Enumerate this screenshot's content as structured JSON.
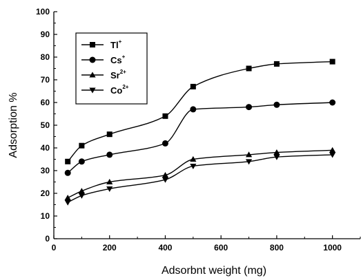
{
  "chart_data": {
    "type": "scatter",
    "title": "",
    "xlabel": "Adsorbnt weight (mg)",
    "ylabel": "Adsorption %",
    "xlim": [
      0,
      1100
    ],
    "ylim": [
      0,
      100
    ],
    "xticks": [
      0,
      200,
      400,
      600,
      800,
      1000
    ],
    "yticks": [
      0,
      10,
      20,
      30,
      40,
      50,
      60,
      70,
      80,
      90,
      100
    ],
    "grid": false,
    "legend_position": "top-left",
    "marker_color": "#000000",
    "x": [
      50,
      100,
      200,
      400,
      500,
      700,
      800,
      1000
    ],
    "series": [
      {
        "name": "Tl",
        "sup": "+",
        "marker": "square",
        "values": [
          34,
          41,
          46,
          54,
          67,
          75,
          77,
          78
        ]
      },
      {
        "name": "Cs",
        "sup": "+",
        "marker": "circle",
        "values": [
          29,
          34,
          37,
          42,
          57,
          58,
          59,
          60
        ]
      },
      {
        "name": "Sr",
        "sup": "2+",
        "marker": "triangle-up",
        "values": [
          18,
          21,
          25,
          28,
          35,
          37,
          38,
          39
        ]
      },
      {
        "name": "Co",
        "sup": "2+",
        "marker": "triangle-down",
        "values": [
          16,
          19,
          22,
          26,
          32,
          34,
          36,
          37
        ]
      }
    ]
  }
}
